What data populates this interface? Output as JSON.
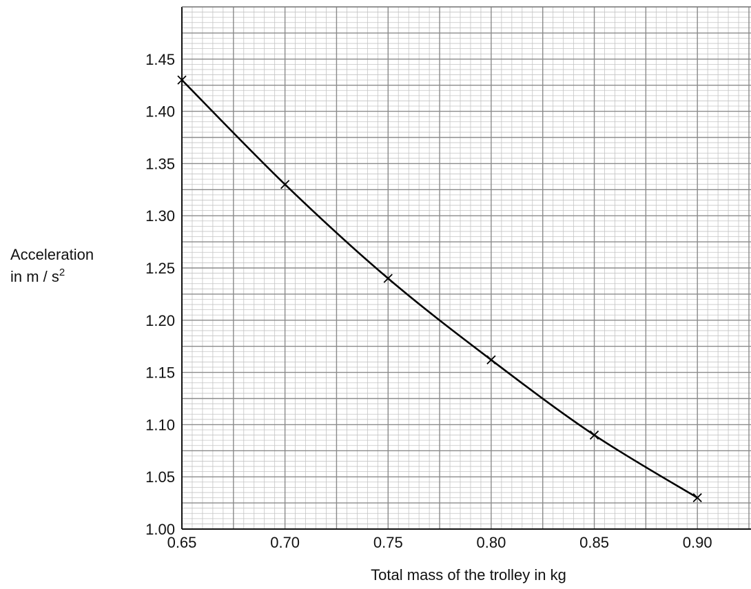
{
  "chart_data": {
    "type": "line",
    "title": "",
    "xlabel": "Total mass of the trolley in kg",
    "ylabel_line1": "Acceleration",
    "ylabel_line2": "in m / s",
    "ylabel_sup": "2",
    "xlim": [
      0.65,
      0.926
    ],
    "ylim": [
      1.0,
      1.5
    ],
    "x_ticks": [
      "0.65",
      "0.70",
      "0.75",
      "0.80",
      "0.85",
      "0.90"
    ],
    "y_ticks": [
      "1.00",
      "1.05",
      "1.10",
      "1.15",
      "1.20",
      "1.25",
      "1.30",
      "1.35",
      "1.40",
      "1.45"
    ],
    "grid": true,
    "series": [
      {
        "x": [
          0.65,
          0.7,
          0.75,
          0.8,
          0.85,
          0.9
        ],
        "y": [
          1.43,
          1.33,
          1.24,
          1.162,
          1.09,
          1.03
        ],
        "marker": "x",
        "curve": "smooth",
        "color": "#000000"
      }
    ]
  }
}
